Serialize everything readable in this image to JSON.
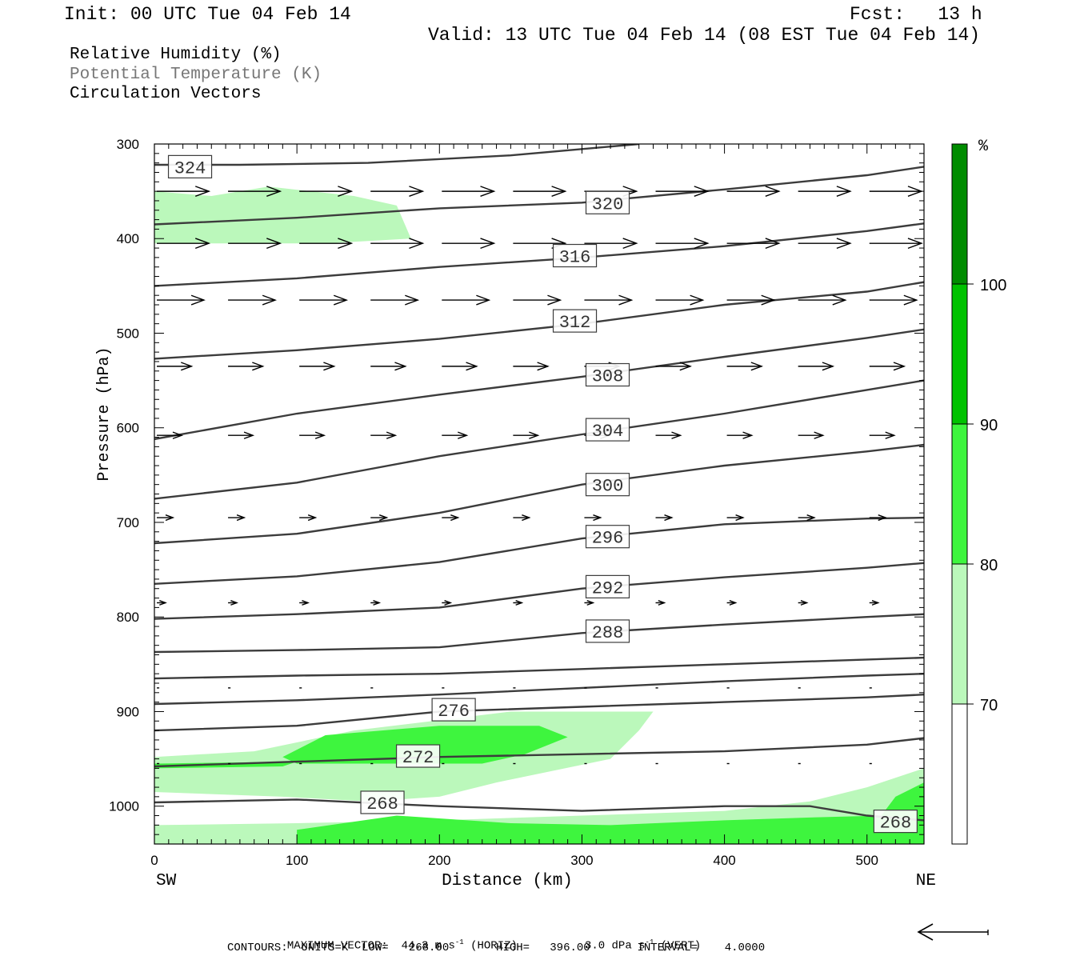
{
  "header": {
    "init": "Init: 00 UTC Tue 04 Feb 14",
    "fcst": "Fcst:   13 h",
    "valid": "Valid: 13 UTC Tue 04 Feb 14 (08 EST Tue 04 Feb 14)"
  },
  "legend_titles": {
    "rh": "Relative Humidity (%)",
    "theta": "Potential Temperature (K)",
    "vectors": "Circulation Vectors"
  },
  "colors": {
    "rh70": "#bbf8bb",
    "rh80": "#3ef53e",
    "rh90": "#00c200",
    "rh100": "#008c00",
    "contour": "#3c3c3c",
    "theta_title": "#777777"
  },
  "footer": {
    "max_vector_label": "MAXIMUM VECTOR:",
    "max_horiz": "44.3 m s",
    "horiz_tag": "(HORIZ)",
    "max_vert": "3.0 dPa s",
    "vert_tag": "(VERT)",
    "exp": "-1",
    "contours": "CONTOURS:  UNITS=K  LOW=   268.00       HIGH=   396.00       INTERVAL=    4.0000"
  },
  "chart_data": {
    "type": "cross-section",
    "xlabel": "Distance (km)",
    "ylabel": "Pressure (hPa)",
    "xlim": [
      0,
      540
    ],
    "ylim": [
      1040,
      300
    ],
    "x_ticks": [
      "0",
      "100",
      "200",
      "300",
      "400",
      "500"
    ],
    "y_ticks": [
      "300",
      "400",
      "500",
      "600",
      "700",
      "800",
      "900",
      "1000"
    ],
    "x_end_labels": {
      "left": "SW",
      "right": "NE"
    },
    "colorbar": {
      "unit": "%",
      "levels": [
        "70",
        "80",
        "90",
        "100"
      ]
    },
    "theta_contours": [
      {
        "label": "324",
        "lx": 25,
        "lp": 324,
        "pts": [
          [
            0,
            322
          ],
          [
            60,
            322
          ],
          [
            150,
            320
          ],
          [
            250,
            312
          ],
          [
            340,
            300
          ]
        ]
      },
      {
        "label": "320",
        "lx": 318,
        "lp": 362,
        "pts": [
          [
            0,
            385
          ],
          [
            100,
            378
          ],
          [
            200,
            368
          ],
          [
            300,
            362
          ],
          [
            400,
            348
          ],
          [
            500,
            333
          ],
          [
            540,
            324
          ]
        ]
      },
      {
        "label": "316",
        "lx": 295,
        "lp": 418,
        "pts": [
          [
            0,
            450
          ],
          [
            100,
            442
          ],
          [
            200,
            430
          ],
          [
            300,
            420
          ],
          [
            400,
            408
          ],
          [
            500,
            392
          ],
          [
            540,
            384
          ]
        ]
      },
      {
        "label": "312",
        "lx": 295,
        "lp": 487,
        "pts": [
          [
            0,
            527
          ],
          [
            100,
            518
          ],
          [
            200,
            506
          ],
          [
            300,
            490
          ],
          [
            400,
            470
          ],
          [
            500,
            456
          ],
          [
            540,
            446
          ]
        ]
      },
      {
        "label": "308",
        "lx": 318,
        "lp": 544,
        "pts": [
          [
            0,
            612
          ],
          [
            100,
            585
          ],
          [
            200,
            565
          ],
          [
            300,
            546
          ],
          [
            400,
            525
          ],
          [
            500,
            505
          ],
          [
            540,
            496
          ]
        ]
      },
      {
        "label": "304",
        "lx": 318,
        "lp": 602,
        "pts": [
          [
            0,
            675
          ],
          [
            100,
            658
          ],
          [
            200,
            630
          ],
          [
            300,
            607
          ],
          [
            400,
            585
          ],
          [
            500,
            560
          ],
          [
            540,
            550
          ]
        ]
      },
      {
        "label": "300",
        "lx": 318,
        "lp": 660,
        "pts": [
          [
            0,
            722
          ],
          [
            100,
            712
          ],
          [
            200,
            690
          ],
          [
            300,
            660
          ],
          [
            400,
            640
          ],
          [
            500,
            625
          ],
          [
            540,
            618
          ]
        ]
      },
      {
        "label": "296",
        "lx": 318,
        "lp": 715,
        "pts": [
          [
            0,
            765
          ],
          [
            100,
            757
          ],
          [
            200,
            742
          ],
          [
            300,
            717
          ],
          [
            400,
            702
          ],
          [
            500,
            696
          ],
          [
            540,
            695
          ]
        ]
      },
      {
        "label": "292",
        "lx": 318,
        "lp": 768,
        "pts": [
          [
            0,
            802
          ],
          [
            100,
            797
          ],
          [
            200,
            790
          ],
          [
            300,
            770
          ],
          [
            400,
            758
          ],
          [
            500,
            748
          ],
          [
            540,
            743
          ]
        ]
      },
      {
        "label": "288",
        "lx": 318,
        "lp": 815,
        "pts": [
          [
            0,
            837
          ],
          [
            100,
            835
          ],
          [
            200,
            832
          ],
          [
            300,
            817
          ],
          [
            400,
            808
          ],
          [
            500,
            800
          ],
          [
            540,
            797
          ]
        ]
      },
      {
        "label": "",
        "lx": 0,
        "lp": 0,
        "pts": [
          [
            0,
            865
          ],
          [
            100,
            862
          ],
          [
            200,
            860
          ],
          [
            300,
            855
          ],
          [
            400,
            850
          ],
          [
            500,
            845
          ],
          [
            540,
            843
          ]
        ]
      },
      {
        "label": "",
        "lx": 0,
        "lp": 0,
        "pts": [
          [
            0,
            892
          ],
          [
            100,
            888
          ],
          [
            200,
            882
          ],
          [
            300,
            875
          ],
          [
            400,
            868
          ],
          [
            500,
            862
          ],
          [
            540,
            860
          ]
        ]
      },
      {
        "label": "276",
        "lx": 210,
        "lp": 898,
        "pts": [
          [
            0,
            920
          ],
          [
            100,
            915
          ],
          [
            200,
            900
          ],
          [
            300,
            895
          ],
          [
            400,
            890
          ],
          [
            500,
            885
          ],
          [
            540,
            882
          ]
        ]
      },
      {
        "label": "272",
        "lx": 185,
        "lp": 947,
        "pts": [
          [
            0,
            958
          ],
          [
            100,
            953
          ],
          [
            200,
            948
          ],
          [
            300,
            945
          ],
          [
            400,
            942
          ],
          [
            500,
            935
          ],
          [
            540,
            928
          ]
        ]
      },
      {
        "label": "268",
        "lx": 160,
        "lp": 996,
        "pts": [
          [
            0,
            996
          ],
          [
            100,
            993
          ],
          [
            200,
            1000
          ],
          [
            300,
            1005
          ],
          [
            400,
            1000
          ],
          [
            460,
            1000
          ],
          [
            500,
            1010
          ],
          [
            540,
            1015
          ]
        ]
      },
      {
        "label": "268",
        "lx": 520,
        "lp": 1016,
        "pts": []
      }
    ],
    "rh70_regions": [
      [
        [
          0,
          350
        ],
        [
          40,
          355
        ],
        [
          80,
          345
        ],
        [
          140,
          355
        ],
        [
          170,
          365
        ],
        [
          180,
          400
        ],
        [
          120,
          405
        ],
        [
          60,
          405
        ],
        [
          0,
          405
        ]
      ],
      [
        [
          0,
          948
        ],
        [
          70,
          942
        ],
        [
          140,
          920
        ],
        [
          250,
          900
        ],
        [
          350,
          900
        ],
        [
          340,
          920
        ],
        [
          320,
          950
        ],
        [
          240,
          975
        ],
        [
          200,
          990
        ],
        [
          150,
          995
        ],
        [
          90,
          990
        ],
        [
          0,
          985
        ]
      ],
      [
        [
          0,
          1020
        ],
        [
          100,
          1018
        ],
        [
          200,
          1015
        ],
        [
          300,
          1010
        ],
        [
          400,
          1005
        ],
        [
          460,
          995
        ],
        [
          500,
          980
        ],
        [
          540,
          960
        ],
        [
          540,
          1040
        ],
        [
          0,
          1040
        ]
      ]
    ],
    "rh80_regions": [
      [
        [
          90,
          948
        ],
        [
          120,
          925
        ],
        [
          200,
          915
        ],
        [
          270,
          915
        ],
        [
          290,
          927
        ],
        [
          260,
          945
        ],
        [
          230,
          955
        ],
        [
          170,
          955
        ],
        [
          100,
          955
        ]
      ],
      [
        [
          0,
          955
        ],
        [
          100,
          953
        ],
        [
          90,
          958
        ],
        [
          0,
          960
        ]
      ],
      [
        [
          100,
          1025
        ],
        [
          170,
          1010
        ],
        [
          250,
          1018
        ],
        [
          320,
          1020
        ],
        [
          400,
          1015
        ],
        [
          460,
          1012
        ],
        [
          510,
          1010
        ],
        [
          520,
          990
        ],
        [
          540,
          975
        ],
        [
          540,
          1040
        ],
        [
          100,
          1040
        ]
      ]
    ],
    "vectors": [
      {
        "p": 350,
        "xs": [
          0,
          50,
          100,
          150,
          200,
          250,
          300,
          350,
          400,
          450,
          500
        ],
        "u": [
          42,
          42,
          42,
          42,
          42,
          42,
          42,
          42,
          42,
          42,
          42
        ],
        "w": [
          0,
          0,
          0,
          0,
          0,
          0,
          0,
          0,
          0,
          0,
          0
        ]
      },
      {
        "p": 405,
        "xs": [
          0,
          50,
          100,
          150,
          200,
          250,
          300,
          350,
          400,
          450,
          500
        ],
        "u": [
          42,
          42,
          42,
          42,
          42,
          42,
          42,
          42,
          42,
          42,
          42
        ],
        "w": [
          0,
          0,
          0,
          0,
          0,
          0,
          0,
          0,
          0,
          0,
          0
        ]
      },
      {
        "p": 465,
        "xs": [
          0,
          50,
          100,
          150,
          200,
          250,
          300,
          350,
          400,
          450,
          500
        ],
        "u": [
          38,
          38,
          38,
          38,
          38,
          38,
          38,
          38,
          38,
          38,
          38
        ],
        "w": [
          0,
          0,
          0,
          0,
          0,
          0,
          0,
          0,
          0,
          0,
          0
        ]
      },
      {
        "p": 535,
        "xs": [
          0,
          50,
          100,
          150,
          200,
          250,
          300,
          350,
          400,
          450,
          500
        ],
        "u": [
          28,
          28,
          28,
          28,
          28,
          28,
          28,
          28,
          28,
          28,
          28
        ],
        "w": [
          0,
          0,
          0,
          0,
          0,
          0,
          0,
          0,
          0,
          0,
          0
        ]
      },
      {
        "p": 608,
        "xs": [
          0,
          50,
          100,
          150,
          200,
          250,
          300,
          350,
          400,
          450,
          500
        ],
        "u": [
          20,
          20,
          20,
          20,
          20,
          20,
          20,
          20,
          20,
          20,
          20
        ],
        "w": [
          0,
          0,
          0,
          0,
          0,
          0,
          0,
          0,
          0,
          0,
          0
        ]
      },
      {
        "p": 695,
        "xs": [
          0,
          50,
          100,
          150,
          200,
          250,
          300,
          350,
          400,
          450,
          500
        ],
        "u": [
          13,
          13,
          13,
          13,
          13,
          13,
          13,
          13,
          13,
          13,
          13
        ],
        "w": [
          0,
          0,
          0,
          0,
          0,
          0,
          0,
          0,
          0,
          0,
          0
        ]
      },
      {
        "p": 785,
        "xs": [
          0,
          50,
          100,
          150,
          200,
          250,
          300,
          350,
          400,
          450,
          500
        ],
        "u": [
          7,
          7,
          7,
          7,
          7,
          7,
          7,
          7,
          7,
          7,
          7
        ],
        "w": [
          0,
          0,
          0,
          0,
          0,
          0,
          0,
          0,
          0,
          0,
          0
        ]
      },
      {
        "p": 875,
        "xs": [
          0,
          50,
          100,
          150,
          200,
          250,
          300,
          350,
          400,
          450,
          500
        ],
        "u": [
          2,
          2,
          2,
          2,
          2,
          2,
          2,
          2,
          2,
          2,
          2
        ],
        "w": [
          0,
          0,
          0,
          0,
          0,
          0,
          0,
          0,
          0,
          0,
          0
        ]
      },
      {
        "p": 955,
        "xs": [
          0,
          50,
          100,
          150,
          200,
          250,
          300,
          350,
          400,
          450,
          500
        ],
        "u": [
          2,
          2,
          2,
          2,
          2,
          2,
          2,
          2,
          2,
          2,
          2
        ],
        "w": [
          0,
          0,
          0,
          0,
          0,
          0,
          0,
          0,
          0,
          0,
          0
        ]
      }
    ]
  }
}
